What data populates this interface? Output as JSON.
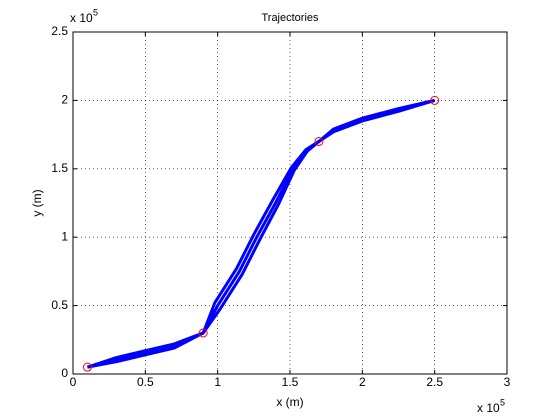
{
  "chart_data": {
    "type": "line",
    "title": "Trajectories",
    "x_label": "x (m)",
    "y_label": "y (m)",
    "x_multiplier": "x 10",
    "x_multiplier_exponent": "5",
    "y_multiplier": "x 10",
    "y_multiplier_exponent": "5",
    "xlim": [
      0,
      300000
    ],
    "ylim": [
      0,
      250000
    ],
    "grid": true,
    "xticks": [
      0,
      {
        "value": 50000,
        "label": "0.5"
      },
      {
        "value": 100000,
        "label": "1"
      },
      {
        "value": 150000,
        "label": "1.5"
      },
      {
        "value": 200000,
        "label": "2"
      },
      {
        "value": 250000,
        "label": "2.5"
      },
      {
        "value": 300000,
        "label": "3"
      }
    ],
    "yticks": [
      0,
      {
        "value": 50000,
        "label": "0.5"
      },
      {
        "value": 100000,
        "label": "1"
      },
      {
        "value": 150000,
        "label": "1.5"
      },
      {
        "value": 200000,
        "label": "2"
      },
      {
        "value": 250000,
        "label": "2.5"
      }
    ],
    "series": [
      {
        "color": "#0000ff",
        "x": [
          10000,
          30000,
          50000,
          70000,
          90000,
          100000,
          115000,
          127000,
          140000,
          152000,
          162000,
          170000,
          180000,
          200000,
          225000,
          250000
        ],
        "values": [
          5000,
          11000,
          16000,
          21000,
          30000,
          50000,
          75000,
          100000,
          125000,
          150000,
          163000,
          170000,
          178000,
          186000,
          193000,
          200000
        ]
      },
      {
        "color": "#0000ff",
        "x": [
          10000,
          30000,
          50000,
          70000,
          90000,
          102000,
          117000,
          129000,
          142000,
          153000,
          162000,
          170000,
          180000,
          200000,
          225000,
          250000
        ],
        "values": [
          5000,
          9000,
          14000,
          19000,
          30000,
          48000,
          73000,
          98000,
          124000,
          149000,
          163000,
          170000,
          177000,
          185000,
          192000,
          200000
        ]
      },
      {
        "color": "#0000ff",
        "x": [
          10000,
          30000,
          50000,
          70000,
          90000,
          98000,
          113000,
          125000,
          138000,
          151000,
          161000,
          170000,
          180000,
          200000,
          225000,
          250000
        ],
        "values": [
          5000,
          12000,
          17000,
          22000,
          30000,
          52000,
          77000,
          102000,
          127000,
          151000,
          164000,
          170000,
          179000,
          187000,
          194000,
          200000
        ]
      },
      {
        "color": "#ff0000",
        "marker": "circle",
        "line": false,
        "x": [
          10000,
          90000,
          170000,
          250000
        ],
        "values": [
          5000,
          30000,
          170000,
          200000
        ]
      }
    ]
  }
}
